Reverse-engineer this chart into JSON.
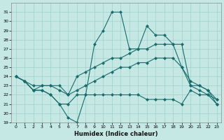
{
  "xlabel": "Humidex (Indice chaleur)",
  "xlim": [
    -0.5,
    23.5
  ],
  "ylim": [
    19,
    32
  ],
  "yticks": [
    19,
    20,
    21,
    22,
    23,
    24,
    25,
    26,
    27,
    28,
    29,
    30,
    31
  ],
  "xticks": [
    0,
    1,
    2,
    3,
    4,
    5,
    6,
    7,
    8,
    9,
    10,
    11,
    12,
    13,
    14,
    15,
    16,
    17,
    18,
    19,
    20,
    21,
    22,
    23
  ],
  "background_color": "#c5e8e5",
  "grid_color": "#9fcfcc",
  "line_color": "#1a6b6b",
  "lines": [
    {
      "x": [
        0,
        1,
        2,
        3,
        4,
        5,
        6,
        7,
        8,
        9,
        10,
        11,
        12,
        13,
        14,
        15,
        16,
        17,
        18,
        19,
        20,
        21,
        22,
        23
      ],
      "y": [
        24,
        23.5,
        22.5,
        22.5,
        22,
        21,
        19.5,
        19,
        22,
        27.5,
        29,
        31,
        31,
        27,
        27,
        29.5,
        28.5,
        28.5,
        27.5,
        25,
        23,
        22.5,
        22,
        21.5
      ]
    },
    {
      "x": [
        0,
        1,
        2,
        3,
        4,
        5,
        6,
        7,
        8,
        9,
        10,
        11,
        12,
        13,
        14,
        15,
        16,
        17,
        18,
        19,
        20,
        21,
        22,
        23
      ],
      "y": [
        24,
        23.5,
        22.5,
        23,
        23,
        23,
        22,
        24,
        24.5,
        25,
        25.5,
        26,
        26,
        26.5,
        27,
        27,
        27.5,
        27.5,
        27.5,
        27.5,
        23,
        23,
        22.5,
        21
      ]
    },
    {
      "x": [
        0,
        1,
        2,
        3,
        4,
        5,
        6,
        7,
        8,
        9,
        10,
        11,
        12,
        13,
        14,
        15,
        16,
        17,
        18,
        19,
        20,
        21,
        22,
        23
      ],
      "y": [
        24,
        23.5,
        23,
        23,
        23,
        22.5,
        22,
        22.5,
        23,
        23.5,
        24,
        24.5,
        25,
        25,
        25.5,
        25.5,
        26,
        26,
        26,
        25,
        23.5,
        23,
        22.5,
        21.5
      ]
    },
    {
      "x": [
        0,
        1,
        2,
        3,
        4,
        5,
        6,
        7,
        8,
        9,
        10,
        11,
        12,
        13,
        14,
        15,
        16,
        17,
        18,
        19,
        20,
        21,
        22,
        23
      ],
      "y": [
        24,
        23.5,
        22.5,
        22.5,
        22,
        21,
        21,
        22,
        22,
        22,
        22,
        22,
        22,
        22,
        22,
        21.5,
        21.5,
        21.5,
        21.5,
        21,
        22.5,
        22,
        22,
        21
      ]
    }
  ]
}
